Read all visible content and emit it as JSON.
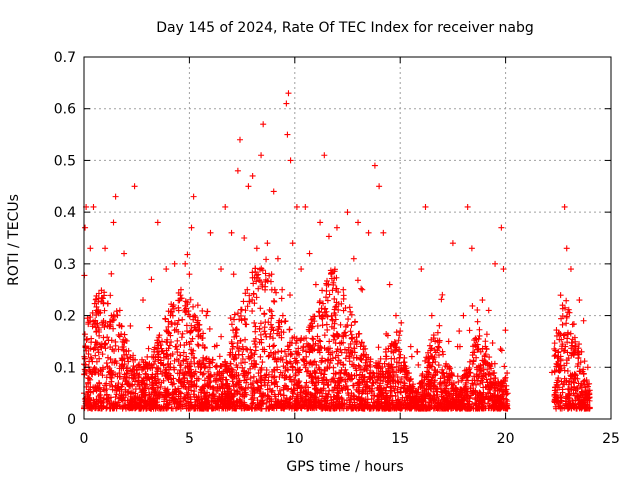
{
  "chart_data": {
    "type": "scatter",
    "title": "Day 145 of 2024, Rate Of TEC Index for receiver nabg",
    "xlabel": "GPS time / hours",
    "ylabel": "ROTI / TECUs",
    "xlim": [
      0,
      25
    ],
    "ylim": [
      0,
      0.7
    ],
    "xticks": [
      "0",
      "5",
      "10",
      "15",
      "20",
      "25"
    ],
    "yticks": [
      "0",
      "0.1",
      "0.2",
      "0.3",
      "0.4",
      "0.5",
      "0.6",
      "0.7"
    ],
    "grid": true,
    "marker": "plus",
    "color": "#ff0000",
    "data_gaps_hours": [
      [
        20.1,
        22.3
      ]
    ],
    "series": [
      {
        "values": [
          [
            0.0,
            0.05
          ],
          [
            0.05,
            0.37
          ],
          [
            0.1,
            0.41
          ],
          [
            0.3,
            0.33
          ],
          [
            0.45,
            0.41
          ],
          [
            0.6,
            0.21
          ],
          [
            0.8,
            0.14
          ],
          [
            1.0,
            0.33
          ],
          [
            1.2,
            0.09
          ],
          [
            1.4,
            0.38
          ],
          [
            1.5,
            0.43
          ],
          [
            1.7,
            0.21
          ],
          [
            1.9,
            0.32
          ],
          [
            2.2,
            0.18
          ],
          [
            2.4,
            0.45
          ],
          [
            2.6,
            0.08
          ],
          [
            2.8,
            0.23
          ],
          [
            3.0,
            0.12
          ],
          [
            3.2,
            0.27
          ],
          [
            3.5,
            0.38
          ],
          [
            3.7,
            0.15
          ],
          [
            3.9,
            0.29
          ],
          [
            4.1,
            0.1
          ],
          [
            4.3,
            0.3
          ],
          [
            4.6,
            0.25
          ],
          [
            4.8,
            0.3
          ],
          [
            5.0,
            0.28
          ],
          [
            5.1,
            0.37
          ],
          [
            5.2,
            0.43
          ],
          [
            5.4,
            0.22
          ],
          [
            5.6,
            0.06
          ],
          [
            5.8,
            0.2
          ],
          [
            6.0,
            0.36
          ],
          [
            6.2,
            0.14
          ],
          [
            6.5,
            0.29
          ],
          [
            6.7,
            0.41
          ],
          [
            7.0,
            0.36
          ],
          [
            7.1,
            0.28
          ],
          [
            7.3,
            0.48
          ],
          [
            7.4,
            0.54
          ],
          [
            7.6,
            0.35
          ],
          [
            7.8,
            0.45
          ],
          [
            8.0,
            0.47
          ],
          [
            8.2,
            0.33
          ],
          [
            8.4,
            0.51
          ],
          [
            8.5,
            0.57
          ],
          [
            8.7,
            0.34
          ],
          [
            8.9,
            0.28
          ],
          [
            9.0,
            0.44
          ],
          [
            9.2,
            0.31
          ],
          [
            9.4,
            0.25
          ],
          [
            9.6,
            0.61
          ],
          [
            9.65,
            0.55
          ],
          [
            9.7,
            0.63
          ],
          [
            9.8,
            0.5
          ],
          [
            9.9,
            0.34
          ],
          [
            10.1,
            0.41
          ],
          [
            10.3,
            0.29
          ],
          [
            10.5,
            0.41
          ],
          [
            10.7,
            0.32
          ],
          [
            11.0,
            0.26
          ],
          [
            11.2,
            0.38
          ],
          [
            11.4,
            0.51
          ],
          [
            11.6,
            0.26
          ],
          [
            11.8,
            0.19
          ],
          [
            12.0,
            0.37
          ],
          [
            12.3,
            0.25
          ],
          [
            12.5,
            0.4
          ],
          [
            12.8,
            0.31
          ],
          [
            13.0,
            0.38
          ],
          [
            13.2,
            0.25
          ],
          [
            13.5,
            0.36
          ],
          [
            13.8,
            0.49
          ],
          [
            14.0,
            0.45
          ],
          [
            14.2,
            0.36
          ],
          [
            14.5,
            0.26
          ],
          [
            14.8,
            0.2
          ],
          [
            15.0,
            0.17
          ],
          [
            15.3,
            0.08
          ],
          [
            15.5,
            0.14
          ],
          [
            15.8,
            0.13
          ],
          [
            16.0,
            0.29
          ],
          [
            16.2,
            0.41
          ],
          [
            16.5,
            0.2
          ],
          [
            16.8,
            0.14
          ],
          [
            17.0,
            0.24
          ],
          [
            17.3,
            0.15
          ],
          [
            17.5,
            0.34
          ],
          [
            17.8,
            0.17
          ],
          [
            18.0,
            0.2
          ],
          [
            18.2,
            0.41
          ],
          [
            18.4,
            0.33
          ],
          [
            18.6,
            0.14
          ],
          [
            18.9,
            0.23
          ],
          [
            19.2,
            0.21
          ],
          [
            19.5,
            0.3
          ],
          [
            19.8,
            0.37
          ],
          [
            19.9,
            0.29
          ],
          [
            20.0,
            0.08
          ],
          [
            22.2,
            0.09
          ],
          [
            22.5,
            0.13
          ],
          [
            22.7,
            0.22
          ],
          [
            22.8,
            0.41
          ],
          [
            22.9,
            0.33
          ],
          [
            23.1,
            0.29
          ],
          [
            23.3,
            0.14
          ],
          [
            23.5,
            0.23
          ],
          [
            23.7,
            0.19
          ],
          [
            23.9,
            0.1
          ]
        ]
      }
    ]
  }
}
